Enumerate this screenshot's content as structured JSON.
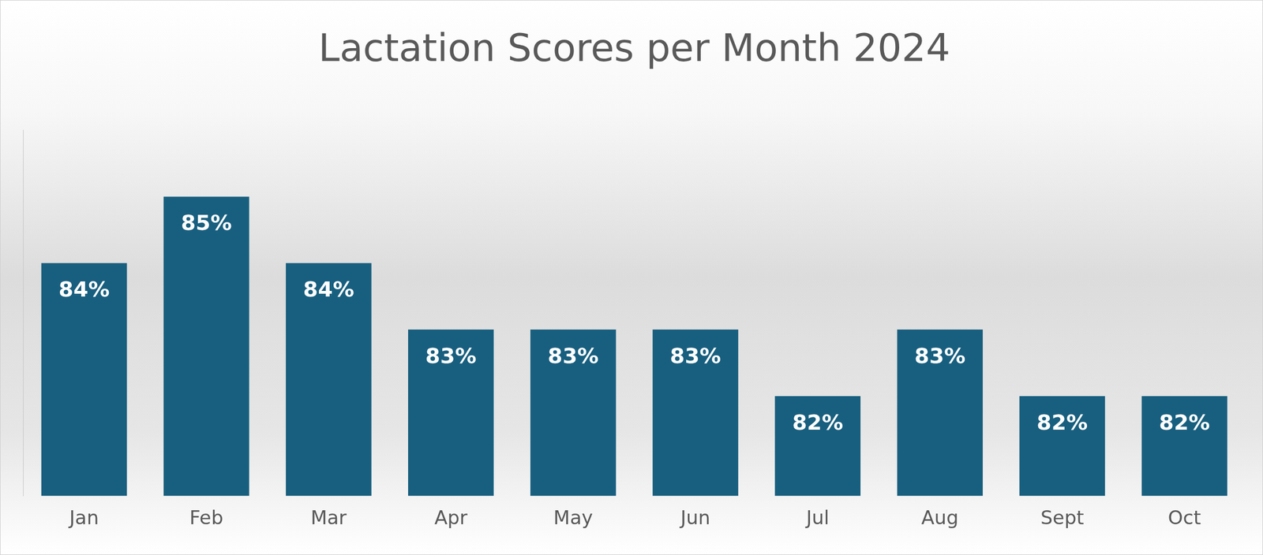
{
  "chart_data": {
    "type": "bar",
    "title": "Lactation Scores per Month 2024",
    "categories": [
      "Jan",
      "Feb",
      "Mar",
      "Apr",
      "May",
      "Jun",
      "Jul",
      "Aug",
      "Sept",
      "Oct"
    ],
    "values": [
      84,
      85,
      84,
      83,
      83,
      83,
      82,
      83,
      82,
      82
    ],
    "value_labels": [
      "84%",
      "85%",
      "84%",
      "83%",
      "83%",
      "83%",
      "82%",
      "83%",
      "82%",
      "82%"
    ],
    "color": "#185f7f",
    "ylim": [
      80.5,
      86
    ],
    "grid": false,
    "data_labels": true,
    "tick_labels": "x"
  }
}
